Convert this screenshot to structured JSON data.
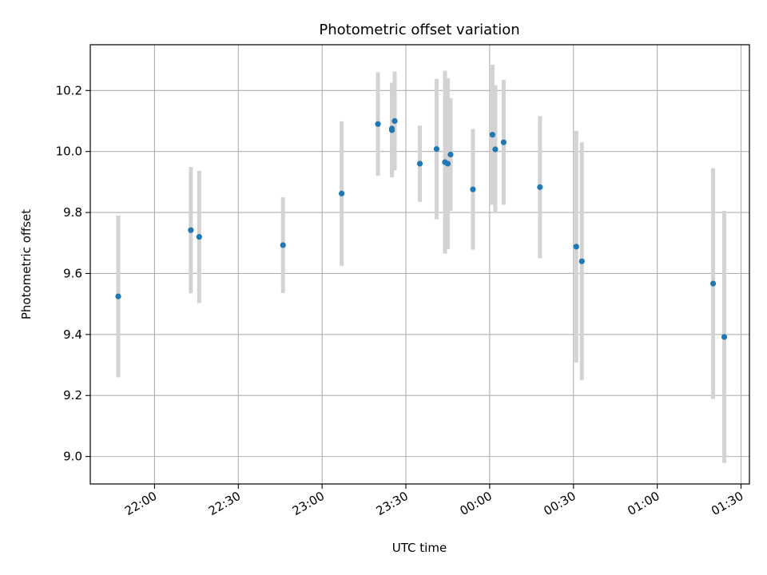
{
  "chart_data": {
    "type": "scatter",
    "title": "Photometric offset variation",
    "xlabel": "UTC time",
    "ylabel": "Photometric offset",
    "xlim": [
      "21:37",
      "01:33"
    ],
    "ylim": [
      8.91,
      10.35
    ],
    "grid": true,
    "x_ticks": [
      "22:00",
      "22:30",
      "23:00",
      "23:30",
      "00:00",
      "00:30",
      "01:00",
      "01:30"
    ],
    "y_ticks": [
      "9.0",
      "9.2",
      "9.4",
      "9.6",
      "9.8",
      "10.0",
      "10.2"
    ],
    "colors": {
      "marker": "#1f77b4",
      "errorbar": "#d3d3d3",
      "grid": "#b0b0b0"
    },
    "series": [
      {
        "x": [
          "21:47",
          "22:13",
          "22:16",
          "22:46",
          "23:07",
          "23:20",
          "23:25",
          "23:25",
          "23:26",
          "23:35",
          "23:41",
          "23:44",
          "23:45",
          "23:46",
          "23:54",
          "00:01",
          "00:02",
          "00:05",
          "00:18",
          "00:31",
          "00:33",
          "01:20",
          "01:24"
        ],
        "y": [
          9.525,
          9.742,
          9.72,
          9.693,
          9.862,
          10.09,
          10.07,
          10.075,
          10.1,
          9.96,
          10.008,
          9.965,
          9.96,
          9.99,
          9.876,
          10.055,
          10.007,
          10.03,
          9.883,
          9.688,
          9.64,
          9.567,
          9.392
        ],
        "yerr": [
          0.265,
          0.207,
          0.217,
          0.157,
          0.237,
          0.17,
          0.155,
          0.15,
          0.162,
          0.125,
          0.23,
          0.3,
          0.28,
          0.185,
          0.198,
          0.23,
          0.21,
          0.205,
          0.233,
          0.38,
          0.39,
          0.378,
          0.413
        ]
      }
    ]
  }
}
